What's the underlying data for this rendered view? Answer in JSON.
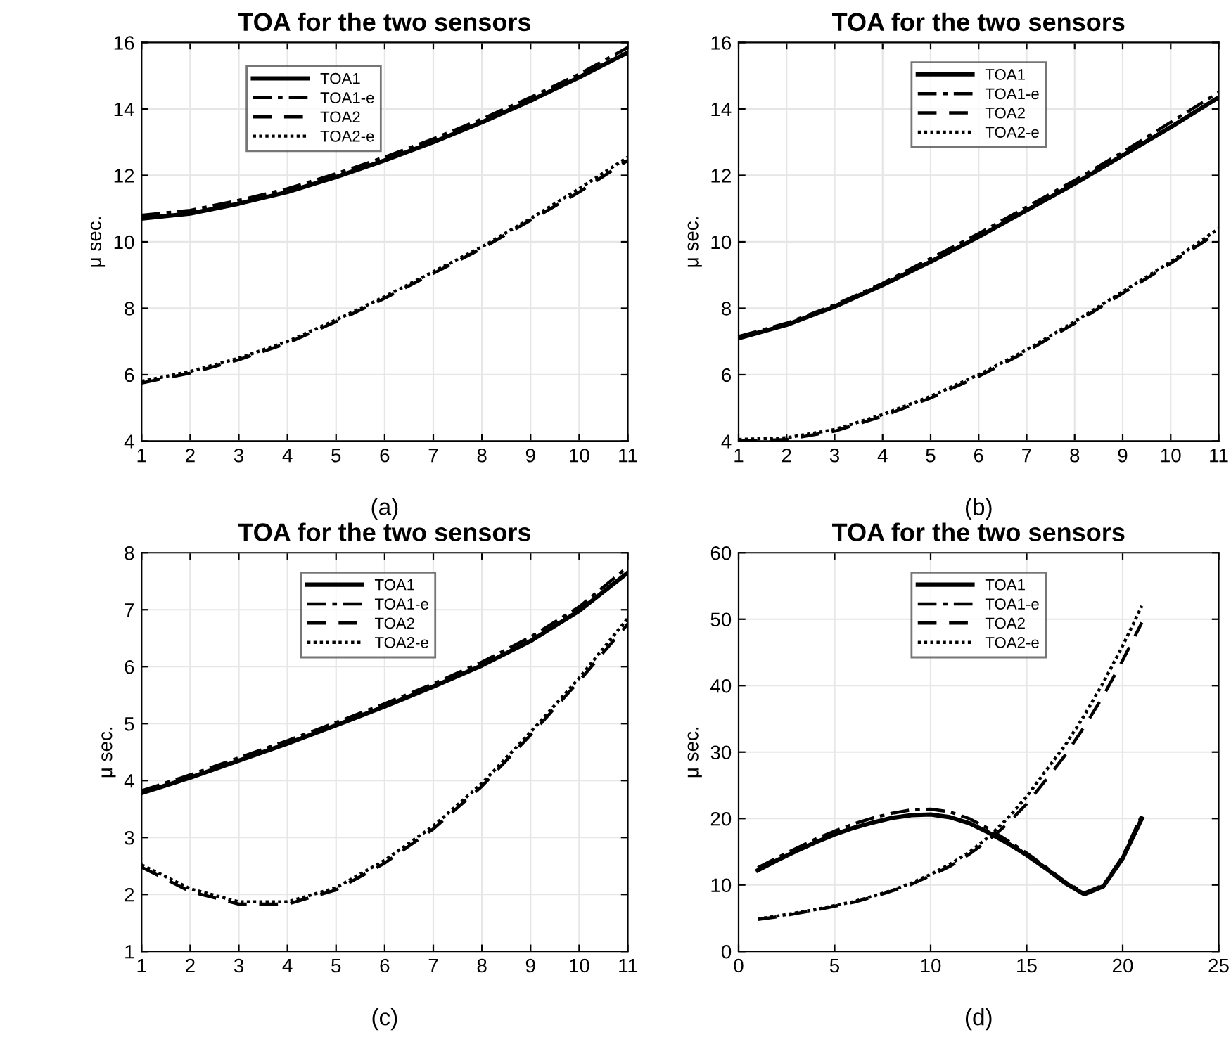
{
  "chart_data": [
    {
      "type": "line",
      "title": "TOA for the two sensors",
      "ylabel": "μ sec.",
      "annotations": [
        "(a)"
      ],
      "x": [
        1,
        2,
        3,
        4,
        5,
        6,
        7,
        8,
        9,
        10,
        11
      ],
      "xlim": [
        1,
        11
      ],
      "xticks": [
        1,
        2,
        3,
        4,
        5,
        6,
        7,
        8,
        9,
        10,
        11
      ],
      "ylim": [
        4,
        16
      ],
      "yticks": [
        4,
        6,
        8,
        10,
        12,
        14,
        16
      ],
      "grid": true,
      "legend": "top left",
      "series": [
        {
          "name": "TOA1",
          "color": "#000000",
          "line_style": "solid",
          "values": [
            10.7,
            10.85,
            11.15,
            11.5,
            11.95,
            12.45,
            13.0,
            13.6,
            14.25,
            14.95,
            15.7
          ]
        },
        {
          "name": "TOA1-e",
          "color": "#000000",
          "line_style": "dashdot",
          "values": [
            10.8,
            10.95,
            11.25,
            11.6,
            12.05,
            12.55,
            13.1,
            13.7,
            14.35,
            15.05,
            15.85
          ]
        },
        {
          "name": "TOA2",
          "color": "#000000",
          "line_style": "dashed",
          "values": [
            5.75,
            6.05,
            6.45,
            6.95,
            7.6,
            8.3,
            9.05,
            9.8,
            10.65,
            11.5,
            12.45
          ]
        },
        {
          "name": "TOA2-e",
          "color": "#000000",
          "line_style": "dotted",
          "values": [
            5.8,
            6.1,
            6.5,
            7.0,
            7.65,
            8.35,
            9.1,
            9.85,
            10.7,
            11.6,
            12.55
          ]
        }
      ]
    },
    {
      "type": "line",
      "title": "TOA for the two sensors",
      "ylabel": "μ sec.",
      "annotations": [
        "(b)"
      ],
      "x": [
        1,
        2,
        3,
        4,
        5,
        6,
        7,
        8,
        9,
        10,
        11
      ],
      "xlim": [
        1,
        11
      ],
      "xticks": [
        1,
        2,
        3,
        4,
        5,
        6,
        7,
        8,
        9,
        10,
        11
      ],
      "ylim": [
        4,
        16
      ],
      "yticks": [
        4,
        6,
        8,
        10,
        12,
        14,
        16
      ],
      "grid": true,
      "legend": "top",
      "series": [
        {
          "name": "TOA1",
          "color": "#000000",
          "line_style": "solid",
          "values": [
            7.1,
            7.5,
            8.05,
            8.7,
            9.4,
            10.15,
            10.95,
            11.75,
            12.6,
            13.45,
            14.35
          ]
        },
        {
          "name": "TOA1-e",
          "color": "#000000",
          "line_style": "dashdot",
          "values": [
            7.15,
            7.55,
            8.1,
            8.75,
            9.5,
            10.25,
            11.05,
            11.85,
            12.7,
            13.6,
            14.5
          ]
        },
        {
          "name": "TOA2",
          "color": "#000000",
          "line_style": "dashed",
          "values": [
            4.0,
            4.05,
            4.3,
            4.75,
            5.3,
            5.95,
            6.7,
            7.55,
            8.45,
            9.35,
            10.3
          ]
        },
        {
          "name": "TOA2-e",
          "color": "#000000",
          "line_style": "dotted",
          "values": [
            4.05,
            4.1,
            4.35,
            4.8,
            5.35,
            6.0,
            6.75,
            7.6,
            8.5,
            9.4,
            10.4
          ]
        }
      ]
    },
    {
      "type": "line",
      "title": "TOA for the two sensors",
      "ylabel": "μ sec.",
      "annotations": [
        "(c)"
      ],
      "x": [
        1,
        2,
        3,
        4,
        5,
        6,
        7,
        8,
        9,
        10,
        11
      ],
      "xlim": [
        1,
        11
      ],
      "xticks": [
        1,
        2,
        3,
        4,
        5,
        6,
        7,
        8,
        9,
        10,
        11
      ],
      "ylim": [
        1,
        8
      ],
      "yticks": [
        1,
        2,
        3,
        4,
        5,
        6,
        7,
        8
      ],
      "grid": true,
      "legend": "top right",
      "series": [
        {
          "name": "TOA1",
          "color": "#000000",
          "line_style": "solid",
          "values": [
            3.78,
            4.05,
            4.35,
            4.65,
            4.97,
            5.3,
            5.65,
            6.02,
            6.45,
            6.98,
            7.65
          ]
        },
        {
          "name": "TOA1-e",
          "color": "#000000",
          "line_style": "dashdot",
          "values": [
            3.82,
            4.1,
            4.4,
            4.7,
            5.02,
            5.35,
            5.7,
            6.08,
            6.52,
            7.05,
            7.75
          ]
        },
        {
          "name": "TOA2",
          "color": "#000000",
          "line_style": "dashed",
          "values": [
            2.48,
            2.05,
            1.83,
            1.83,
            2.08,
            2.55,
            3.15,
            3.9,
            4.8,
            5.75,
            6.75
          ]
        },
        {
          "name": "TOA2-e",
          "color": "#000000",
          "line_style": "dotted",
          "values": [
            2.52,
            2.1,
            1.87,
            1.87,
            2.12,
            2.6,
            3.2,
            3.95,
            4.85,
            5.8,
            6.85
          ]
        }
      ]
    },
    {
      "type": "line",
      "title": "TOA for the two sensors",
      "ylabel": "μ sec.",
      "annotations": [
        "(d)"
      ],
      "x": [
        1,
        2,
        3,
        4,
        5,
        6,
        7,
        8,
        9,
        10,
        11,
        12,
        13,
        14,
        15,
        16,
        17,
        18,
        19,
        20,
        21
      ],
      "xlim": [
        0,
        25
      ],
      "xticks": [
        0,
        5,
        10,
        15,
        20,
        25
      ],
      "ylim": [
        0,
        60
      ],
      "yticks": [
        0,
        10,
        20,
        30,
        40,
        50,
        60
      ],
      "grid": true,
      "legend": "top",
      "series": [
        {
          "name": "TOA1",
          "color": "#000000",
          "line_style": "solid",
          "values": [
            12.2,
            13.7,
            15.1,
            16.4,
            17.6,
            18.6,
            19.4,
            20.1,
            20.5,
            20.6,
            20.2,
            19.3,
            17.9,
            16.3,
            14.5,
            12.5,
            10.3,
            8.6,
            9.8,
            14.0,
            20.0
          ]
        },
        {
          "name": "TOA1-e",
          "color": "#000000",
          "line_style": "dashdot",
          "values": [
            12.6,
            14.1,
            15.5,
            16.9,
            18.1,
            19.2,
            20.1,
            20.8,
            21.3,
            21.4,
            21.0,
            20.0,
            18.5,
            16.7,
            14.8,
            12.7,
            10.5,
            8.8,
            10.0,
            14.3,
            20.5
          ]
        },
        {
          "name": "TOA2",
          "color": "#000000",
          "line_style": "dashed",
          "values": [
            4.8,
            5.2,
            5.7,
            6.2,
            6.8,
            7.4,
            8.2,
            9.1,
            10.1,
            11.4,
            12.8,
            14.6,
            16.7,
            19.2,
            22.2,
            25.8,
            29.5,
            33.8,
            38.5,
            43.8,
            49.5
          ]
        },
        {
          "name": "TOA2-e",
          "color": "#000000",
          "line_style": "dotted",
          "values": [
            4.9,
            5.3,
            5.8,
            6.3,
            6.9,
            7.5,
            8.3,
            9.2,
            10.3,
            11.6,
            13.1,
            14.9,
            17.2,
            20.0,
            23.3,
            27.2,
            31.0,
            35.5,
            40.5,
            46.0,
            52.0
          ]
        }
      ]
    }
  ]
}
